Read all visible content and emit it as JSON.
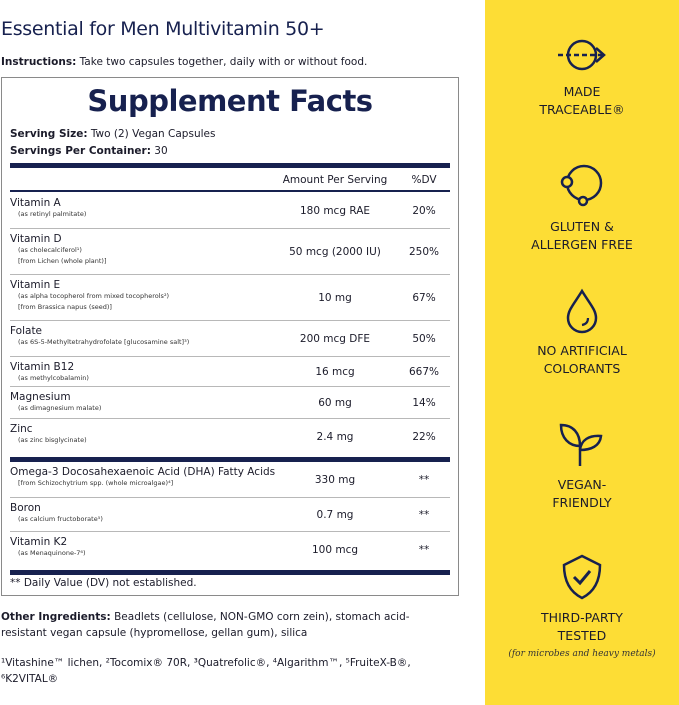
{
  "title": "Essential for Men Multivitamin 50+",
  "instructions": {
    "label": "Instructions:",
    "text": " Take two capsules together, daily with or without food."
  },
  "facts": {
    "heading": "Supplement Facts",
    "serving_size": {
      "label": "Serving Size:",
      "value": " Two (2) Vegan Capsules"
    },
    "servings_per_container": {
      "label": "Servings Per Container:",
      "value": " 30"
    },
    "columns": {
      "amount": "Amount Per Serving",
      "dv": "%DV"
    },
    "group1": [
      {
        "name": "Vitamin A",
        "subs": [
          "(as retinyl palmitate)"
        ],
        "amount": "180 mcg RAE",
        "dv": "20%"
      },
      {
        "name": "Vitamin D",
        "subs": [
          "(as cholecalciferol¹)",
          "[from Lichen (whole plant)]"
        ],
        "amount": "50 mcg (2000 IU)",
        "dv": "250%"
      },
      {
        "name": "Vitamin E",
        "subs": [
          "(as alpha tocopherol from mixed tocopherols²)",
          "[from Brassica napus (seed)]"
        ],
        "amount": "10 mg",
        "dv": "67%"
      },
      {
        "name": "Folate",
        "subs": [
          "(as 6S-5-Methyltetrahydrofolate [glucosamine salt]³)"
        ],
        "amount": "200 mcg DFE",
        "dv": "50%"
      },
      {
        "name": "Vitamin B12",
        "subs": [
          "(as methylcobalamin)"
        ],
        "amount": "16 mcg",
        "dv": "667%"
      },
      {
        "name": "Magnesium",
        "subs": [
          "(as dimagnesium malate)"
        ],
        "amount": "60 mg",
        "dv": "14%"
      },
      {
        "name": "Zinc",
        "subs": [
          "(as zinc bisglycinate)"
        ],
        "amount": "2.4 mg",
        "dv": "22%"
      }
    ],
    "group2": [
      {
        "name": "Omega-3 Docosahexaenoic Acid (DHA) Fatty Acids",
        "subs": [
          "[from Schizochytrium spp. (whole microalgae)⁴]"
        ],
        "amount": "330 mg",
        "dv": "**"
      },
      {
        "name": "Boron",
        "subs": [
          "(as calcium fructoborate⁵)"
        ],
        "amount": "0.7 mg",
        "dv": "**"
      },
      {
        "name": "Vitamin K2",
        "subs": [
          "(as Menaquinone-7⁶)"
        ],
        "amount": "100 mcg",
        "dv": "**"
      }
    ],
    "footnote": "** Daily Value (DV) not established."
  },
  "other_ingredients": {
    "label": "Other Ingredients:",
    "text": " Beadlets (cellulose, NON-GMO corn zein), stomach acid-resistant vegan capsule (hypromellose, gellan gum), silica"
  },
  "trademarks": "¹Vitashine™ lichen, ²Tocomix® 70R, ³Quatrefolic®, ⁴Algarithm™, ⁵FruiteX-B®, ⁶K2VITAL®",
  "features": [
    {
      "icon": "traceable-arrow-icon",
      "line1": "MADE",
      "line2": "TRACEABLE®"
    },
    {
      "icon": "molecule-icon",
      "line1": "GLUTEN &",
      "line2": "ALLERGEN FREE"
    },
    {
      "icon": "drop-icon",
      "line1": "NO ARTIFICIAL",
      "line2": "COLORANTS"
    },
    {
      "icon": "sprout-icon",
      "line1": "VEGAN-",
      "line2": "FRIENDLY"
    },
    {
      "icon": "shield-check-icon",
      "line1": "THIRD-PARTY",
      "line2": "TESTED",
      "note": "(for microbes and heavy metals)"
    }
  ],
  "colors": {
    "navy": "#17214f",
    "yellow": "#fddd35"
  }
}
